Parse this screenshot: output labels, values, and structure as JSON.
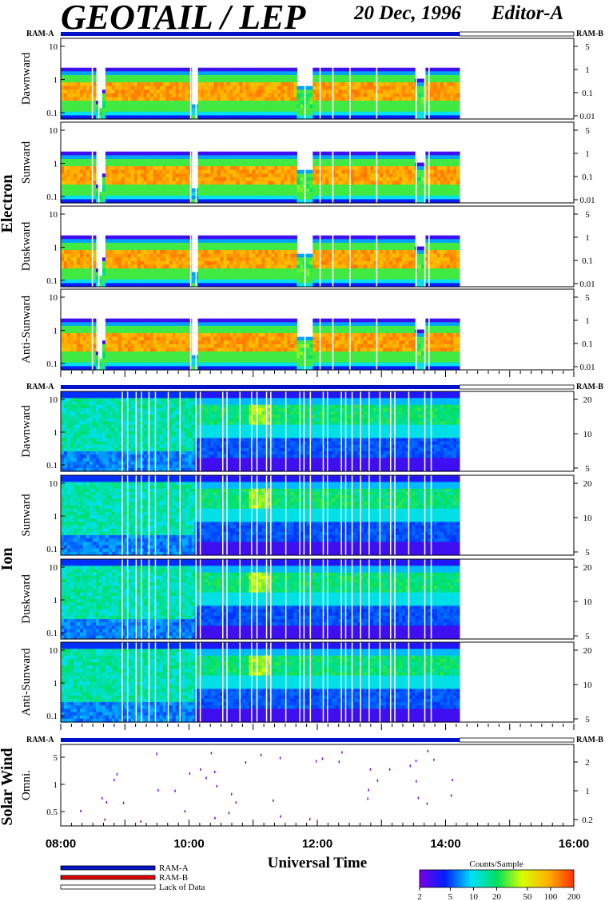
{
  "header": {
    "title": "GEOTAIL / LEP",
    "date": "20 Dec, 1996",
    "editor": "Editor-A"
  },
  "chart_data": {
    "type": "heatmap",
    "xlabel": "Universal Time",
    "x_ticks": [
      "08:00",
      "10:00",
      "12:00",
      "14:00",
      "16:00"
    ],
    "xlim": [
      "08:00",
      "16:00"
    ],
    "data_end": "14:13",
    "ram_labels": {
      "a": "RAM-A",
      "b": "RAM-B"
    },
    "groups": [
      {
        "name": "Electron",
        "left_ticks": [
          "10",
          "1",
          "0.1"
        ],
        "right_ticks": [
          "5",
          "1",
          "0.1",
          "0.01"
        ],
        "panels": [
          {
            "label": "Dawnward"
          },
          {
            "label": "Sunward"
          },
          {
            "label": "Duskward"
          },
          {
            "label": "Anti-Sunward"
          }
        ]
      },
      {
        "name": "Ion",
        "left_ticks": [
          "10",
          "1",
          "0.1"
        ],
        "right_ticks": [
          "20",
          "10",
          "5"
        ],
        "panels": [
          {
            "label": "Dawnward"
          },
          {
            "label": "Sunward"
          },
          {
            "label": "Duskward"
          },
          {
            "label": "Anti-Sunward"
          }
        ]
      },
      {
        "name": "Solar Wind",
        "left_ticks": [
          "5",
          "1",
          "0.5"
        ],
        "right_ticks": [
          "2",
          "1",
          "0.2"
        ],
        "panels": [
          {
            "label": "Omni."
          }
        ]
      }
    ],
    "colorbar": {
      "title": "Counts/Sample",
      "ticks": [
        "2",
        "5",
        "10",
        "20",
        "50",
        "100",
        "200"
      ],
      "colors": [
        "#7a00e6",
        "#0020ff",
        "#00e0ff",
        "#00e060",
        "#d8ff00",
        "#ffb000",
        "#ff3000"
      ]
    },
    "legend": [
      {
        "label": "RAM-A",
        "color": "#0012c8"
      },
      {
        "label": "RAM-B",
        "color": "#e00000"
      },
      {
        "label": "Lack of Data",
        "color": "#ffffff"
      }
    ]
  }
}
